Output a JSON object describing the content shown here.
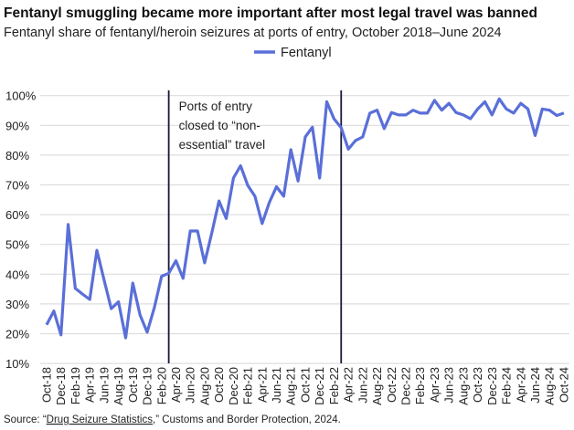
{
  "chart_data": {
    "type": "line",
    "title": "Fentanyl smuggling became more important after most legal travel was banned",
    "subtitle": "Fentanyl share of fentanyl/heroin seizures at ports of entry, October 2018–June 2024",
    "xlabel": "",
    "ylabel": "",
    "ylim": [
      10,
      100
    ],
    "yticks": [
      "10%",
      "20%",
      "30%",
      "40%",
      "50%",
      "60%",
      "70%",
      "80%",
      "90%",
      "100%"
    ],
    "xtick_labels": [
      "Oct-18",
      "Dec-18",
      "Feb-19",
      "Apr-19",
      "Jun-19",
      "Aug-19",
      "Oct-19",
      "Dec-19",
      "Feb-20",
      "Apr-20",
      "Jun-20",
      "Aug-20",
      "Oct-20",
      "Dec-20",
      "Feb-21",
      "Apr-21",
      "Jun-21",
      "Aug-21",
      "Oct-21",
      "Dec-21",
      "Feb-22",
      "Apr-22",
      "Jun-22",
      "Aug-22",
      "Oct-22",
      "Dec-22",
      "Feb-23",
      "Apr-23",
      "Jun-23",
      "Aug-23",
      "Oct-23",
      "Dec-23",
      "Feb-24",
      "Apr-24",
      "Jun-24",
      "Aug-24",
      "Oct-24"
    ],
    "grid": true,
    "legend_position": "top-center",
    "series": [
      {
        "name": "Fentanyl",
        "color": "#5a6fd8",
        "values": [
          23.0,
          27.6,
          19.6,
          56.7,
          35.2,
          33.3,
          31.5,
          48.0,
          38.0,
          28.4,
          30.7,
          18.6,
          37.0,
          26.3,
          20.5,
          28.8,
          39.3,
          40.3,
          44.5,
          38.6,
          54.5,
          54.5,
          43.8,
          54.0,
          64.6,
          58.7,
          72.3,
          76.4,
          69.8,
          66.2,
          57.0,
          64.1,
          69.4,
          66.2,
          81.8,
          71.3,
          86.1,
          89.4,
          72.3,
          97.9,
          92.2,
          89.2,
          82.0,
          84.9,
          86.1,
          94.1,
          95.1,
          88.9,
          94.3,
          93.5,
          93.5,
          95.1,
          94.1,
          94.1,
          98.4,
          95.1,
          97.4,
          94.3,
          93.5,
          92.2,
          95.5,
          97.9,
          93.5,
          98.9,
          95.5,
          94.1,
          97.4,
          95.5,
          86.6,
          95.5,
          95.1,
          93.3,
          94.1
        ]
      }
    ],
    "vertical_markers": [
      {
        "index": 17,
        "annotation": [
          "Ports of entry",
          "closed to “non-",
          "essential” travel"
        ]
      },
      {
        "index": 41,
        "annotation": []
      }
    ],
    "marker_color": "#1a1a3a"
  },
  "source": {
    "prefix": "Source: “",
    "link": "Drug Seizure Statistics",
    "suffix": ",” Customs and Border Protection, 2024."
  }
}
